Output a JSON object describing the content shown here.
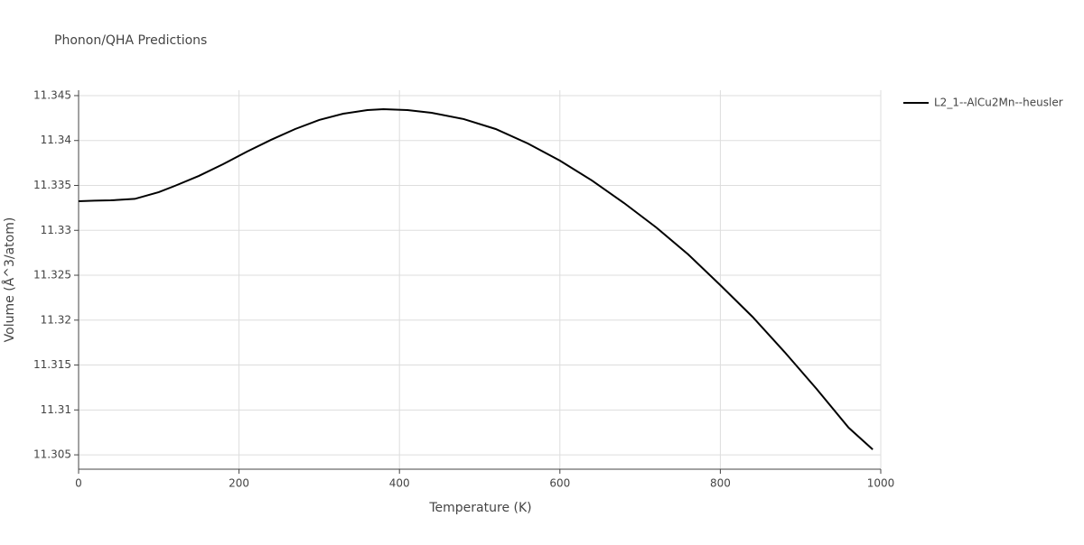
{
  "chart_data": {
    "type": "line",
    "title": "Phonon/QHA Predictions",
    "x_label": "Temperature (K)",
    "y_label": "Volume (Å^3/atom)",
    "x": [
      0,
      20,
      40,
      70,
      100,
      120,
      150,
      180,
      210,
      240,
      270,
      300,
      330,
      360,
      380,
      410,
      440,
      480,
      520,
      560,
      600,
      640,
      680,
      720,
      760,
      800,
      840,
      880,
      920,
      960,
      990
    ],
    "series": [
      {
        "name": "L2_1--AlCu2Mn--heusler",
        "color": "#000000",
        "values": [
          11.33324,
          11.3333,
          11.33334,
          11.3335,
          11.33425,
          11.33495,
          11.33606,
          11.33736,
          11.33877,
          11.34008,
          11.34128,
          11.34229,
          11.34299,
          11.34339,
          11.34349,
          11.34339,
          11.34309,
          11.34239,
          11.34128,
          11.33967,
          11.33776,
          11.33555,
          11.33304,
          11.33033,
          11.32731,
          11.3239,
          11.32038,
          11.31646,
          11.31234,
          11.30802,
          11.3056
        ]
      }
    ],
    "xlim": [
      0,
      1000
    ],
    "xticks": [
      0,
      200,
      400,
      600,
      800,
      1000
    ],
    "ylim": [
      11.3034,
      11.3456
    ],
    "yticks": [
      11.305,
      11.31,
      11.315,
      11.32,
      11.325,
      11.33,
      11.335,
      11.34,
      11.345
    ],
    "grid": true,
    "legend": "right"
  }
}
